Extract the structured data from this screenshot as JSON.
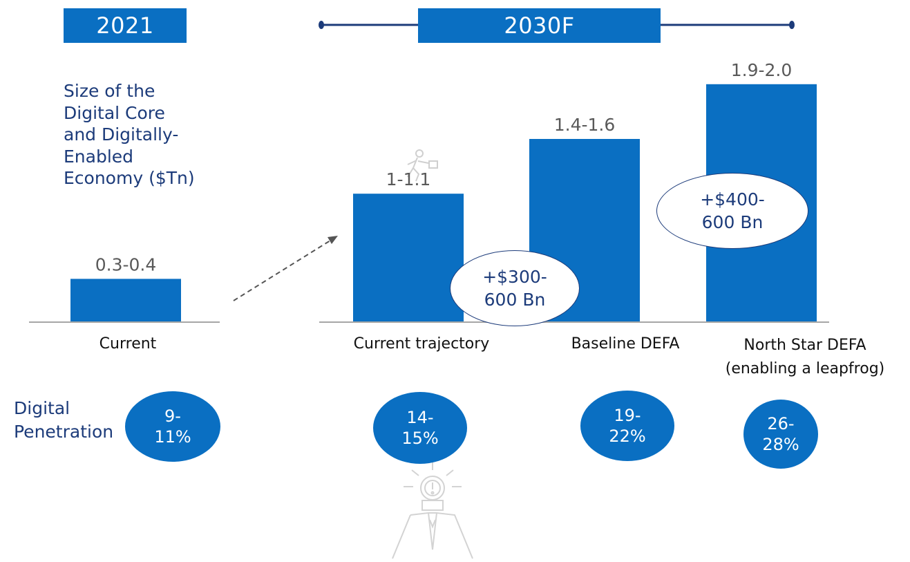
{
  "header": {
    "year_left": "2021",
    "year_right": "2030F"
  },
  "chart_data": {
    "type": "bar",
    "ylabel": "Size of the Digital Core and Digitally-Enabled Economy  ($Tn)",
    "categories": [
      "Current",
      "Current trajectory",
      "Baseline DEFA",
      "North Star DEFA (enabling a leapfrog)"
    ],
    "values": [
      0.35,
      1.05,
      1.5,
      1.95
    ],
    "value_labels": [
      "0.3-0.4",
      "1-1.1",
      "1.4-1.6",
      "1.9-2.0"
    ],
    "ylim": [
      0,
      2.1
    ],
    "grid": false,
    "bar_color": "#0a6fc2",
    "uplift_labels": [
      "+$300-600 Bn",
      "+$400-600 Bn"
    ],
    "penetration_label": "Digital Penetration",
    "penetration_values": [
      "9-11%",
      "14-15%",
      "19-22%",
      "26-28%"
    ]
  },
  "text": {
    "ylabel_lines": [
      "Size of the",
      "Digital Core",
      "and Digitally-",
      "Enabled",
      "Economy  ($Tn)"
    ],
    "cat_lines": [
      [
        "Current"
      ],
      [
        "Current trajectory"
      ],
      [
        "Baseline DEFA"
      ],
      [
        "North Star DEFA",
        "(enabling a leapfrog)"
      ]
    ],
    "pen_label_lines": [
      "Digital",
      "Penetration"
    ],
    "pen_lines": [
      [
        "9-",
        "11%"
      ],
      [
        "14-",
        "15%"
      ],
      [
        "19-",
        "22%"
      ],
      [
        "26-",
        "28%"
      ]
    ],
    "gain_lines": [
      [
        "+$300-",
        "600 Bn"
      ],
      [
        "+$400-",
        "600 Bn"
      ]
    ]
  },
  "colors": {
    "accent": "#0a6fc2",
    "navy": "#1c3b7a",
    "value_label": "#595959"
  },
  "icons": [
    "runner-with-briefcase-icon",
    "lightbulb-head-person-icon",
    "dashed-arrow-icon"
  ]
}
